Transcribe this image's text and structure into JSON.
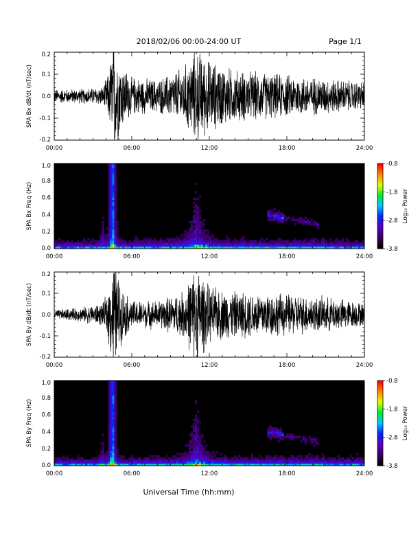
{
  "header": {
    "date_range": "2018/02/06  00:00-24:00 UT",
    "page": "Page 1/1"
  },
  "xaxis": {
    "label": "Universal Time (hh:mm)",
    "ticks": [
      "00:00",
      "06:00",
      "12:00",
      "18:00",
      "24:00"
    ],
    "range_hours": [
      0,
      24
    ]
  },
  "colorbar": {
    "label": "Log₁₀ Power",
    "ticks": [
      "-0.8",
      "-1.8",
      "-2.8",
      "-3.8"
    ],
    "range": [
      -3.8,
      -0.8
    ],
    "colormap": "rainbow (black-purple-blue-cyan-green-yellow-orange-red)"
  },
  "chart_data": [
    {
      "type": "line",
      "ylabel": "SPA Bx dB/dt (nT/sec)",
      "ylim": [
        -0.2,
        0.2
      ],
      "yticks": [
        "0.2",
        "0.1",
        "0.0",
        "-0.1",
        "-0.2"
      ],
      "xlim": [
        0,
        24
      ],
      "amplitude_envelope": {
        "x": [
          0,
          2,
          3.8,
          4.2,
          4.6,
          5.2,
          6,
          8,
          10,
          11,
          12,
          14,
          16,
          18,
          20,
          22,
          24
        ],
        "y": [
          0.03,
          0.03,
          0.04,
          0.1,
          0.25,
          0.14,
          0.08,
          0.07,
          0.12,
          0.2,
          0.15,
          0.11,
          0.1,
          0.09,
          0.08,
          0.07,
          0.06
        ]
      }
    },
    {
      "type": "heatmap",
      "ylabel": "SPA Bx Freq (Hz)",
      "ylim": [
        0,
        1.0
      ],
      "yticks": [
        "1.0",
        "0.8",
        "0.6",
        "0.4",
        "0.2",
        "0.0"
      ],
      "xlim": [
        0,
        24
      ],
      "features": [
        {
          "name": "broadband event",
          "x_hours": 4.5,
          "freq_max": 1.0
        },
        {
          "name": "enhancement",
          "x_hours": 11.0,
          "freq_max": 0.6
        },
        {
          "name": "emission band",
          "x_hours_range": [
            16.5,
            20.5
          ],
          "freq_range": [
            0.2,
            0.4
          ]
        }
      ]
    },
    {
      "type": "line",
      "ylabel": "SPA By dB/dt (nT/sec)",
      "ylim": [
        -0.2,
        0.2
      ],
      "yticks": [
        "0.2",
        "0.1",
        "0.0",
        "-0.1",
        "-0.2"
      ],
      "xlim": [
        0,
        24
      ],
      "amplitude_envelope": {
        "x": [
          0,
          2,
          3.8,
          4.2,
          4.6,
          5.2,
          6,
          8,
          10,
          11,
          12,
          14,
          16,
          18,
          20,
          22,
          24
        ],
        "y": [
          0.02,
          0.03,
          0.05,
          0.12,
          0.25,
          0.12,
          0.06,
          0.06,
          0.1,
          0.22,
          0.12,
          0.1,
          0.1,
          0.09,
          0.08,
          0.07,
          0.05
        ]
      }
    },
    {
      "type": "heatmap",
      "ylabel": "SPA By Freq (Hz)",
      "ylim": [
        0,
        1.0
      ],
      "yticks": [
        "1.0",
        "0.8",
        "0.6",
        "0.4",
        "0.2",
        "0.0"
      ],
      "xlim": [
        0,
        24
      ],
      "features": [
        {
          "name": "broadband event",
          "x_hours": 4.5,
          "freq_max": 1.0
        },
        {
          "name": "enhancement",
          "x_hours": 11.0,
          "freq_max": 0.6
        },
        {
          "name": "emission band",
          "x_hours_range": [
            16.5,
            20.5
          ],
          "freq_range": [
            0.2,
            0.4
          ]
        }
      ]
    }
  ]
}
